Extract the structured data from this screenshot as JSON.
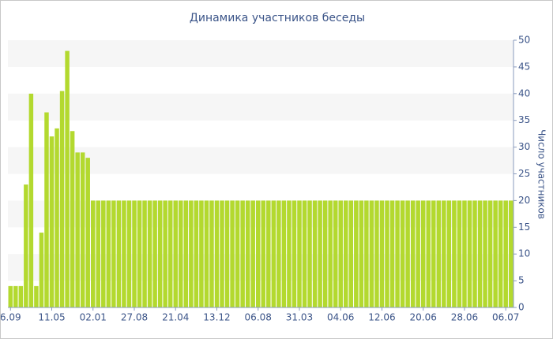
{
  "chart_data": {
    "type": "bar",
    "title": "Динамика участников беседы",
    "y_label": "Число участников",
    "categories": [
      "6.09",
      null,
      null,
      null,
      null,
      null,
      null,
      null,
      "11.05",
      null,
      null,
      null,
      null,
      null,
      null,
      null,
      "02.01",
      null,
      null,
      null,
      null,
      null,
      null,
      null,
      "27.08",
      null,
      null,
      null,
      null,
      null,
      null,
      null,
      "21.04",
      null,
      null,
      null,
      null,
      null,
      null,
      null,
      "13.12",
      null,
      null,
      null,
      null,
      null,
      null,
      null,
      "06.08",
      null,
      null,
      null,
      null,
      null,
      null,
      null,
      "31.03",
      null,
      null,
      null,
      null,
      null,
      null,
      null,
      "04.06",
      null,
      null,
      null,
      null,
      null,
      null,
      null,
      "12.06",
      null,
      null,
      null,
      null,
      null,
      null,
      null,
      "20.06",
      null,
      null,
      null,
      null,
      null,
      null,
      null,
      "28.06",
      null,
      null,
      null,
      null,
      null,
      null,
      null,
      "06.07",
      null
    ],
    "values": [
      4,
      4,
      4,
      23,
      40,
      4,
      14,
      36.5,
      32,
      33.5,
      40.5,
      48,
      33,
      29,
      29,
      28,
      20,
      20,
      20,
      20,
      20,
      20,
      20,
      20,
      20,
      20,
      20,
      20,
      20,
      20,
      20,
      20,
      20,
      20,
      20,
      20,
      20,
      20,
      20,
      20,
      20,
      20,
      20,
      20,
      20,
      20,
      20,
      20,
      20,
      20,
      20,
      20,
      20,
      20,
      20,
      20,
      20,
      20,
      20,
      20,
      20,
      20,
      20,
      20,
      20,
      20,
      20,
      20,
      20,
      20,
      20,
      20,
      20,
      20,
      20,
      20,
      20,
      20,
      20,
      20,
      20,
      20,
      20,
      20,
      20,
      20,
      20,
      20,
      20,
      20,
      20,
      20,
      20,
      20,
      20,
      20,
      20,
      20
    ],
    "color": "#b3d92f",
    "ylim": [
      0,
      50
    ],
    "yticks": [
      0,
      5,
      10,
      15,
      20,
      25,
      30,
      35,
      40,
      45,
      50
    ],
    "y_axis_side": "right",
    "grid": "bands"
  }
}
